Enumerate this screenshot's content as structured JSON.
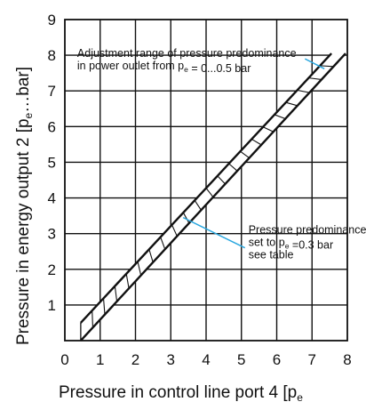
{
  "chart_data": {
    "type": "line",
    "xlabel_main": "Pressure in control line port 4 [p",
    "xlabel_sub": "e",
    "ylabel_main": "Pressure in energy output 2 [p",
    "ylabel_sub": "e",
    "ylabel_tail": "…bar]",
    "xlim": [
      0,
      8
    ],
    "ylim": [
      0,
      9
    ],
    "x_ticks": [
      "0",
      "1",
      "2",
      "3",
      "4",
      "5",
      "6",
      "7",
      "8"
    ],
    "y_ticks": [
      "1",
      "2",
      "3",
      "4",
      "5",
      "6",
      "7",
      "8",
      "9"
    ],
    "grid": true,
    "series": [
      {
        "x": [
          0.45,
          7.55
        ],
        "y": [
          0.5,
          8.05
        ]
      },
      {
        "x": [
          0.45,
          7.95
        ],
        "y": [
          0.0,
          8.05
        ]
      }
    ],
    "band": {
      "x_lower": [
        0.45,
        7.95
      ],
      "y_lower": [
        0.0,
        8.05
      ],
      "x_upper": [
        0.45,
        7.55
      ],
      "y_upper": [
        0.5,
        8.05
      ]
    },
    "annotations": [
      {
        "lines": [
          [
            {
              "t": "Adjustment range of pressure predominance"
            }
          ],
          [
            {
              "t": "in power outlet from p"
            },
            {
              "t": "e",
              "sub": true
            },
            {
              "t": " = 0...0.5 bar"
            }
          ]
        ],
        "text_x": 0.35,
        "text_y": 7.95,
        "pointer_from": [
          6.8,
          7.9
        ],
        "pointer_to": [
          7.35,
          7.62
        ]
      },
      {
        "lines": [
          [
            {
              "t": "Pressure predominance"
            }
          ],
          [
            {
              "t": "set to p"
            },
            {
              "t": "e",
              "sub": true
            },
            {
              "t": " =0.3 bar"
            }
          ],
          [
            {
              "t": "see table"
            }
          ]
        ],
        "text_x": 5.2,
        "text_y": 3.0,
        "pointer_from": [
          5.1,
          2.6
        ],
        "pointer_to": [
          3.35,
          3.45
        ]
      }
    ]
  }
}
